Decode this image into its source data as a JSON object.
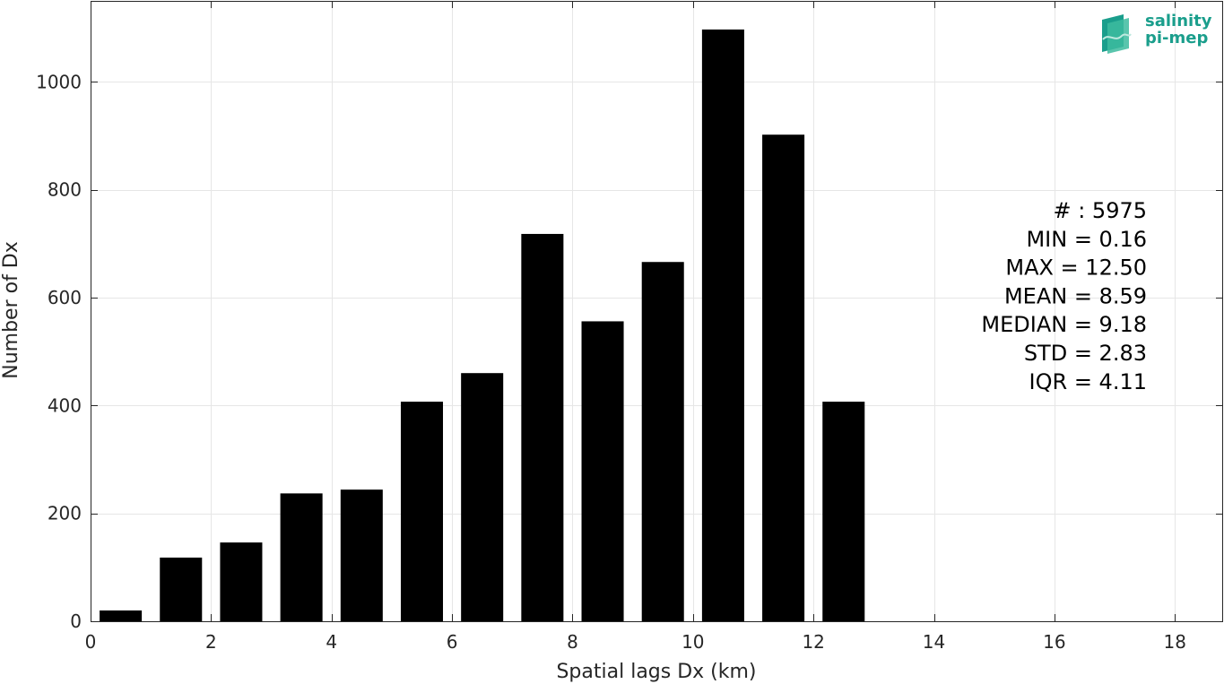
{
  "logo": {
    "line1": "salinity",
    "line2": "pi-mep",
    "color": "#1a9e8c"
  },
  "stats": [
    "# : 5975",
    "MIN = 0.16",
    "MAX =  12.50",
    "MEAN = 8.59",
    "MEDIAN = 9.18",
    "STD = 2.83",
    "IQR = 4.11"
  ],
  "chart_data": {
    "type": "bar",
    "title": "",
    "xlabel": "Spatial lags Dx (km)",
    "ylabel": "Number of Dx",
    "xlim": [
      0,
      18.8
    ],
    "ylim": [
      0,
      1150
    ],
    "xticks": [
      0,
      2,
      4,
      6,
      8,
      10,
      12,
      14,
      16,
      18
    ],
    "yticks": [
      0,
      200,
      400,
      600,
      800,
      1000
    ],
    "grid": true,
    "bar_color": "#000000",
    "bin_width": 1,
    "bar_width_fraction": 0.7,
    "x": [
      0.5,
      1.5,
      2.5,
      3.5,
      4.5,
      5.5,
      6.5,
      7.5,
      8.5,
      9.5,
      10.5,
      11.5,
      12.5
    ],
    "values": [
      20,
      118,
      146,
      237,
      244,
      407,
      460,
      718,
      556,
      666,
      1097,
      902,
      407
    ]
  }
}
